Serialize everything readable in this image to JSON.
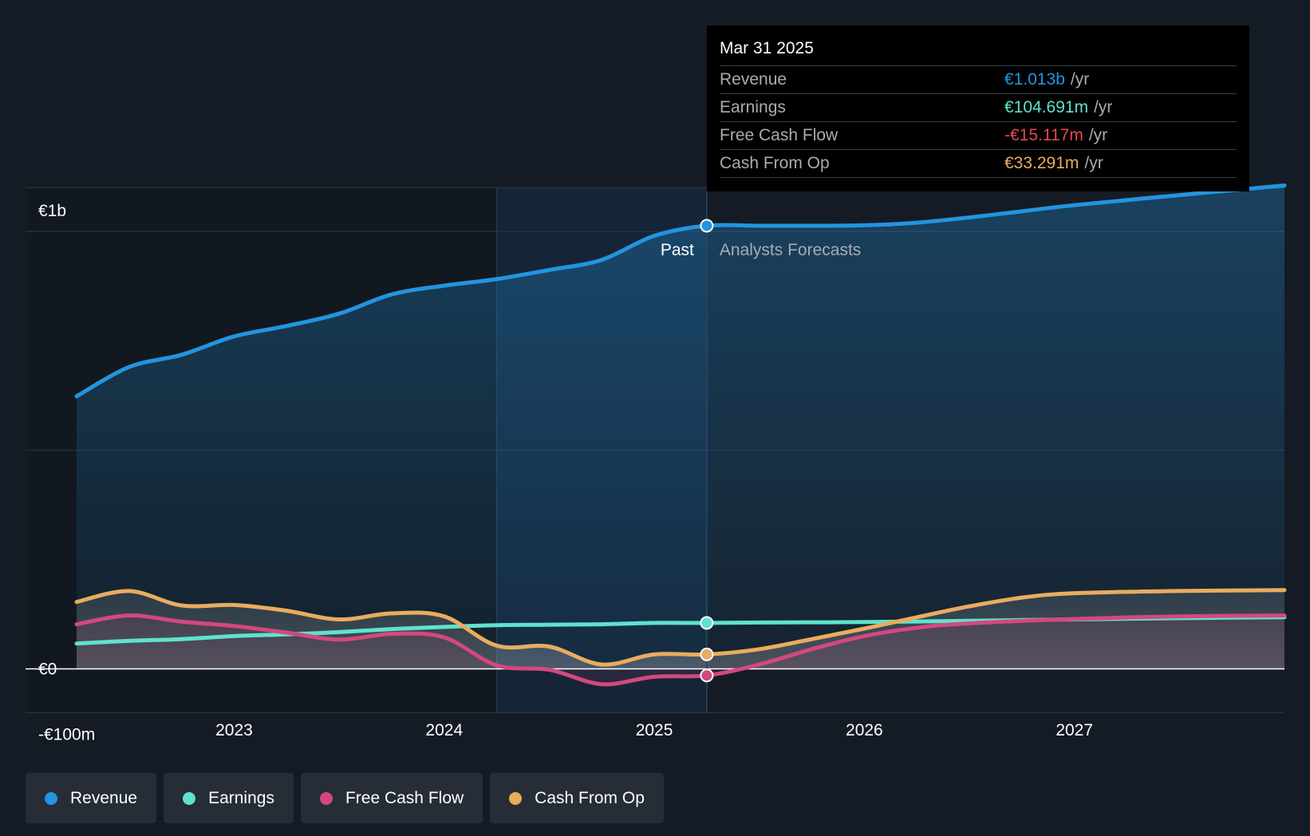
{
  "colors": {
    "background": "#151b24",
    "revenue": "#2394df",
    "earnings": "#5fe2cf",
    "free_cash_flow": "#d4487f",
    "cash_from_op": "#e9ac5e",
    "negative": "#e5484d"
  },
  "tooltip": {
    "date": "Mar 31 2025",
    "rows": [
      {
        "label": "Revenue",
        "value": "€1.013b",
        "unit": "/yr",
        "color": "#2394df"
      },
      {
        "label": "Earnings",
        "value": "€104.691m",
        "unit": "/yr",
        "color": "#5fe2cf"
      },
      {
        "label": "Free Cash Flow",
        "value": "-€15.117m",
        "unit": "/yr",
        "color": "#e5484d"
      },
      {
        "label": "Cash From Op",
        "value": "€33.291m",
        "unit": "/yr",
        "color": "#e9ac5e"
      }
    ]
  },
  "legend": [
    {
      "label": "Revenue",
      "color": "#2394df"
    },
    {
      "label": "Earnings",
      "color": "#5fe2cf"
    },
    {
      "label": "Free Cash Flow",
      "color": "#d4487f"
    },
    {
      "label": "Cash From Op",
      "color": "#e9ac5e"
    }
  ],
  "chart_data": {
    "type": "line",
    "title": "",
    "xlabel": "",
    "ylabel": "",
    "y_labels": [
      "€1b",
      "€0",
      "-€100m"
    ],
    "x_ticks": [
      2023,
      2024,
      2025,
      2026,
      2027
    ],
    "x_tick_labels": [
      "2023",
      "2024",
      "2025",
      "2026",
      "2027"
    ],
    "xlim": [
      2022.25,
      2028.0
    ],
    "ylim": [
      -100,
      1100
    ],
    "past_label": "Past",
    "forecast_label": "Analysts Forecasts",
    "divider_x": 2025.25,
    "shade_start_x": 2024.25,
    "series": [
      {
        "name": "Revenue",
        "color": "#2394df",
        "x": [
          2022.25,
          2022.5,
          2022.75,
          2023.0,
          2023.25,
          2023.5,
          2023.75,
          2024.0,
          2024.25,
          2024.5,
          2024.75,
          2025.0,
          2025.25,
          2025.5,
          2025.75,
          2026.0,
          2026.25,
          2026.5,
          2026.75,
          2027.0,
          2027.5,
          2028.0
        ],
        "values": [
          623,
          690,
          718,
          760,
          784,
          812,
          856,
          876,
          891,
          912,
          935,
          990,
          1013,
          1013,
          1013,
          1014,
          1020,
          1032,
          1046,
          1060,
          1083,
          1105
        ]
      },
      {
        "name": "Earnings",
        "color": "#5fe2cf",
        "x": [
          2022.25,
          2022.5,
          2022.75,
          2023.0,
          2023.25,
          2023.5,
          2023.75,
          2024.0,
          2024.25,
          2024.5,
          2024.75,
          2025.0,
          2025.25,
          2025.5,
          2026.0,
          2026.5,
          2027.0,
          2027.5,
          2028.0
        ],
        "values": [
          58,
          64,
          68,
          75,
          79,
          84,
          91,
          96,
          100,
          101,
          102,
          105,
          105,
          106,
          107,
          110,
          113,
          116,
          118
        ]
      },
      {
        "name": "Free Cash Flow",
        "color": "#d4487f",
        "x": [
          2022.25,
          2022.5,
          2022.75,
          2023.0,
          2023.25,
          2023.5,
          2023.75,
          2024.0,
          2024.25,
          2024.5,
          2024.75,
          2025.0,
          2025.25,
          2025.5,
          2025.75,
          2026.0,
          2026.25,
          2026.5,
          2027.0,
          2027.5,
          2028.0
        ],
        "values": [
          102,
          122,
          108,
          98,
          83,
          67,
          80,
          72,
          8,
          -2,
          -35,
          -18,
          -15,
          10,
          45,
          75,
          94,
          104,
          114,
          120,
          122
        ]
      },
      {
        "name": "Cash From Op",
        "color": "#e9ac5e",
        "x": [
          2022.25,
          2022.5,
          2022.75,
          2023.0,
          2023.25,
          2023.5,
          2023.75,
          2024.0,
          2024.25,
          2024.5,
          2024.75,
          2025.0,
          2025.25,
          2025.5,
          2025.75,
          2026.0,
          2026.25,
          2026.5,
          2026.75,
          2027.0,
          2027.5,
          2028.0
        ],
        "values": [
          153,
          178,
          145,
          146,
          133,
          113,
          127,
          120,
          53,
          51,
          10,
          33,
          33,
          45,
          68,
          92,
          118,
          143,
          163,
          173,
          178,
          180
        ]
      }
    ]
  }
}
